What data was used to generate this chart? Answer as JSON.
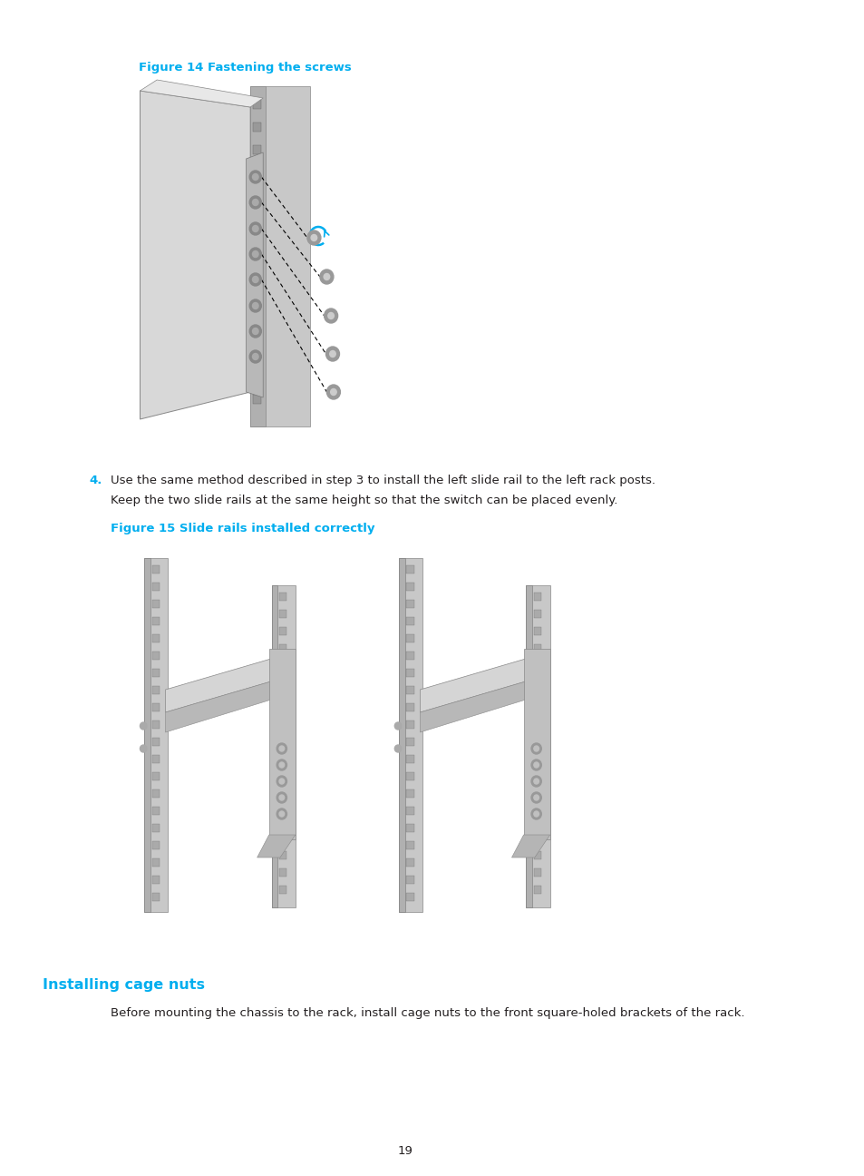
{
  "page_background": "#ffffff",
  "fig_width": 9.54,
  "fig_height": 12.96,
  "fig14_title": "Figure 14 Fastening the screws",
  "fig15_title": "Figure 15 Slide rails installed correctly",
  "section_title": "Installing cage nuts",
  "step4_text1": "Use the same method described in step 3 to install the left slide rail to the left rack posts.",
  "step4_text2": "Keep the two slide rails at the same height so that the switch can be placed evenly.",
  "step4_num": "4.",
  "bottom_text": "Before mounting the chassis to the rack, install cage nuts to the front square-holed brackets of the rack.",
  "page_num": "19",
  "cyan_color": "#00AEEF",
  "text_color": "#231f20",
  "body_font_size": 9.5,
  "fig_title_font_size": 9.5,
  "section_font_size": 11.5
}
